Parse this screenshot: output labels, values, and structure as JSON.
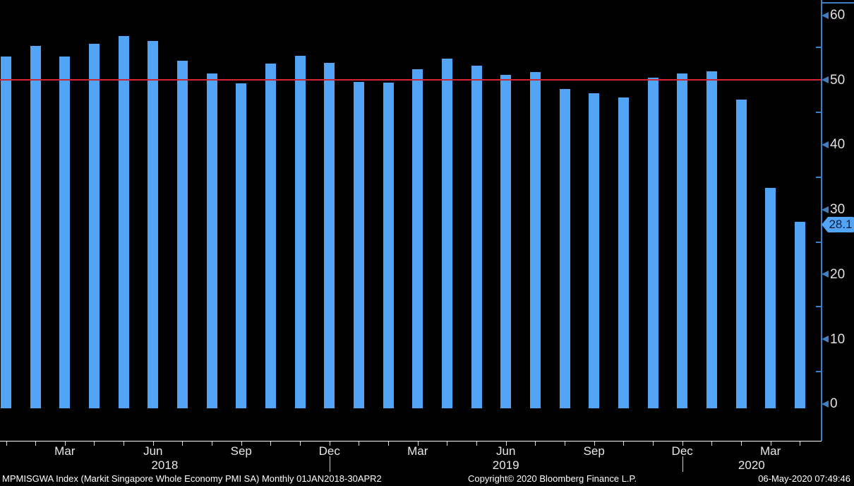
{
  "chart_data": {
    "type": "bar",
    "title": "MPMISGWA Index (Markit Singapore Whole Economy PMI SA)",
    "frequency": "Monthly",
    "period": "01JAN2018-30APR2",
    "categories": [
      "Jan 2018",
      "Feb 2018",
      "Mar 2018",
      "Apr 2018",
      "May 2018",
      "Jun 2018",
      "Jul 2018",
      "Aug 2018",
      "Sep 2018",
      "Oct 2018",
      "Nov 2018",
      "Dec 2018",
      "Jan 2019",
      "Feb 2019",
      "Mar 2019",
      "Apr 2019",
      "May 2019",
      "Jun 2019",
      "Jul 2019",
      "Aug 2019",
      "Sep 2019",
      "Oct 2019",
      "Nov 2019",
      "Dec 2019",
      "Jan 2020",
      "Feb 2020",
      "Mar 2020",
      "Apr 2020"
    ],
    "values": [
      53.6,
      55.3,
      53.6,
      55.6,
      56.8,
      56.0,
      53.0,
      51.0,
      49.5,
      52.5,
      53.7,
      52.7,
      49.7,
      49.6,
      51.7,
      53.3,
      52.2,
      50.8,
      51.2,
      48.6,
      48.0,
      47.3,
      50.4,
      51.0,
      51.3,
      47.0,
      33.3,
      28.1
    ],
    "ylabel": "",
    "xlabel": "",
    "ylim": [
      0,
      62
    ],
    "grid": false,
    "legend_position": "none",
    "y_ticks_major": [
      0,
      10,
      20,
      30,
      40,
      50,
      60
    ],
    "y_ticks_minor": [
      5,
      15,
      25,
      35,
      45,
      55
    ],
    "reference_line_value": 50,
    "last_value_label": "28.1",
    "x_axis": {
      "tick_labels": [
        {
          "label": "Mar",
          "index": 2
        },
        {
          "label": "Jun",
          "index": 5
        },
        {
          "label": "Sep",
          "index": 8
        },
        {
          "label": "Dec",
          "index": 11
        },
        {
          "label": "Mar",
          "index": 14
        },
        {
          "label": "Jun",
          "index": 17
        },
        {
          "label": "Sep",
          "index": 20
        },
        {
          "label": "Dec",
          "index": 23
        },
        {
          "label": "Mar",
          "index": 26
        }
      ],
      "year_labels": [
        "2018",
        "2019",
        "2020"
      ],
      "year_divider_indices": [
        11,
        23
      ]
    },
    "colors": {
      "background": "#000000",
      "bar": "#52a5f5",
      "axis": "#3f7fc1",
      "reference": "#d22433",
      "tick_label": "#e0e0e0",
      "x_axis_line": "#ffffff",
      "tag_background": "#52a5f5",
      "tag_text": "#0b1a38"
    }
  },
  "footer": {
    "left": "MPMISGWA Index (Markit Singapore Whole Economy PMI SA)  Monthly 01JAN2018-30APR2",
    "copyright": "Copyright© 2020 Bloomberg Finance L.P.",
    "timestamp": "06-May-2020 07:49:46"
  }
}
